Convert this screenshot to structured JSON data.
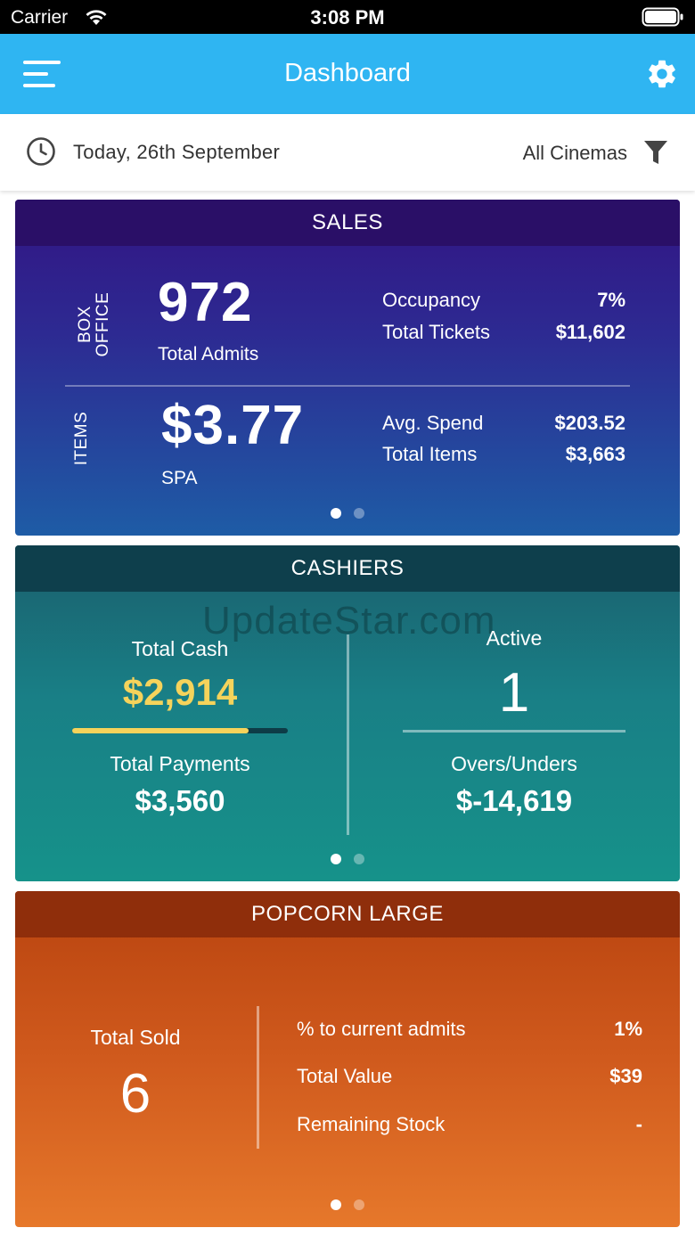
{
  "status_bar": {
    "carrier": "Carrier",
    "time": "3:08 PM"
  },
  "app_bar": {
    "title": "Dashboard",
    "color": "#2fb5f2"
  },
  "filter_bar": {
    "date": "Today, 26th September",
    "cinema": "All Cinemas"
  },
  "sales": {
    "title": "SALES",
    "box_office": {
      "section_label_line1": "BOX",
      "section_label_line2": "OFFICE",
      "total_admits": "972",
      "total_admits_label": "Total Admits",
      "occupancy_label": "Occupancy",
      "occupancy_value": "7%",
      "total_tickets_label": "Total Tickets",
      "total_tickets_value": "$11,602"
    },
    "items": {
      "section_label": "ITEMS",
      "spa": "$3.77",
      "spa_label": "SPA",
      "avg_spend_label": "Avg. Spend",
      "avg_spend_value": "$203.52",
      "total_items_label": "Total Items",
      "total_items_value": "$3,663"
    },
    "pager": {
      "pages": 2,
      "current": 1
    }
  },
  "cashiers": {
    "title": "CASHIERS",
    "watermark": "UpdateStar.com",
    "total_cash_label": "Total Cash",
    "total_cash_value": "$2,914",
    "cash_progress_fraction": 0.82,
    "total_payments_label": "Total Payments",
    "total_payments_value": "$3,560",
    "active_label": "Active",
    "active_value": "1",
    "overs_unders_label": "Overs/Unders",
    "overs_unders_value": "$-14,619",
    "accent_color": "#f5d35b",
    "pager": {
      "pages": 2,
      "current": 1
    }
  },
  "popcorn": {
    "title": "POPCORN LARGE",
    "total_sold_label": "Total Sold",
    "total_sold_value": "6",
    "pct_admits_label": "% to current admits",
    "pct_admits_value": "1%",
    "total_value_label": "Total Value",
    "total_value_value": "$39",
    "remaining_stock_label": "Remaining Stock",
    "remaining_stock_value": "-",
    "pager": {
      "pages": 2,
      "current": 1
    }
  }
}
